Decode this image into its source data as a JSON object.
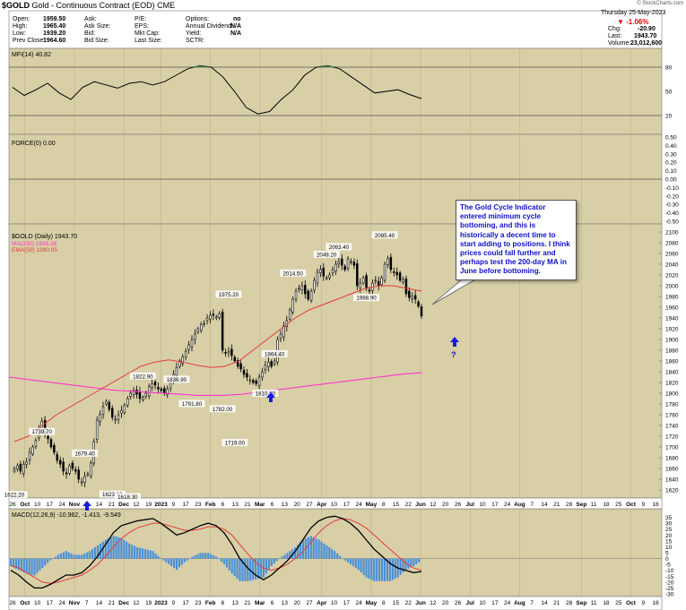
{
  "header": {
    "ticker": "$GOLD",
    "description": "Gold - Continuous Contract (EOD)",
    "exchange": "CME",
    "source": "© StockCharts.com",
    "date": "Thursday  25-May-2023",
    "change_pct": "-1.06%",
    "chg_label": "Chg:",
    "chg": "-20.90",
    "last_label": "Last:",
    "last": "1943.70",
    "volume_label": "Volume:",
    "volume": "23,012,600",
    "col1": [
      [
        "Open:",
        "1959.50"
      ],
      [
        "High:",
        "1965.40"
      ],
      [
        "Low:",
        "1939.20"
      ],
      [
        "Prev Close:",
        "1964.60"
      ]
    ],
    "col2": [
      "Ask:",
      "Ask Size:",
      "Bid:",
      "Bid Size:"
    ],
    "col3": [
      "P/E:",
      "EPS:",
      "Mkt Cap:",
      "Last Size:"
    ],
    "col4": [
      [
        "Options:",
        "no"
      ],
      [
        "Annual Dividend:",
        "N/A"
      ],
      [
        "Yield:",
        "N/A"
      ],
      [
        "SCTR:",
        ""
      ]
    ]
  },
  "annotation": {
    "text": "The Gold Cycle Indicator entered minimum cycle bottoming, and this is historically a decent time to start adding to positions. I think prices could fall further and perhaps test the 200-day MA in June before bottoming.",
    "question": "?"
  },
  "colors": {
    "background": "#d8cfa7",
    "annotation_text": "#1010c8",
    "arrow": "#1a1ae0",
    "ma200": "#ff33cc",
    "ema50": "#e23b3b",
    "macd_line": "#000000",
    "signal_line": "#e23b3b",
    "histogram": "#4a90d9",
    "mfi_fill": "#3f7a3f",
    "candle": "#000000"
  },
  "chart_data": [
    {
      "type": "line",
      "panel": "MFI",
      "label": "MFI(14) 40.82",
      "ylim": [
        0,
        100
      ],
      "y_ticks": [
        20,
        50,
        80
      ],
      "levels": [
        20,
        80
      ],
      "x": [
        "2022-09-26",
        "2022-10-03",
        "2022-10-10",
        "2022-10-17",
        "2022-10-24",
        "2022-10-31",
        "2022-11-07",
        "2022-11-14",
        "2022-11-21",
        "2022-11-28",
        "2022-12-05",
        "2022-12-12",
        "2022-12-19",
        "2022-12-26",
        "2023-01-02",
        "2023-01-09",
        "2023-01-16",
        "2023-01-23",
        "2023-01-30",
        "2023-02-06",
        "2023-02-13",
        "2023-02-20",
        "2023-02-27",
        "2023-03-06",
        "2023-03-13",
        "2023-03-20",
        "2023-03-27",
        "2023-04-03",
        "2023-04-10",
        "2023-04-17",
        "2023-04-24",
        "2023-05-01",
        "2023-05-08",
        "2023-05-15",
        "2023-05-22",
        "2023-05-25"
      ],
      "values": [
        55,
        45,
        52,
        60,
        48,
        40,
        55,
        62,
        58,
        54,
        60,
        62,
        58,
        62,
        70,
        78,
        82,
        80,
        68,
        50,
        30,
        22,
        25,
        40,
        52,
        70,
        80,
        82,
        78,
        68,
        58,
        48,
        50,
        52,
        46,
        41
      ]
    },
    {
      "type": "line",
      "panel": "FORCE",
      "label": "FORCE(0) 0.00",
      "ylim": [
        -0.5,
        0.5
      ],
      "y_ticks": [
        0.5,
        0.4,
        0.3,
        0.2,
        0.1,
        0.0,
        -0.1,
        -0.2,
        -0.3,
        -0.4,
        -0.5
      ],
      "values": [
        0
      ]
    },
    {
      "type": "candlestick",
      "panel": "price",
      "label": "$GOLD (Daily) 1943.70",
      "series": [
        {
          "name": "MA(200) 1836.26",
          "values_key": "ma200"
        },
        {
          "name": "EMA(50) 1990.05",
          "values_key": "ema50"
        }
      ],
      "ylim": [
        1610,
        2110
      ],
      "y_ticks": [
        1620,
        1640,
        1660,
        1680,
        1700,
        1720,
        1740,
        1760,
        1780,
        1800,
        1820,
        1840,
        1860,
        1880,
        1900,
        1920,
        1940,
        1960,
        1980,
        2000,
        2020,
        2040,
        2060,
        2080,
        2100
      ],
      "x_ticks": [
        "26",
        "Oct",
        "10",
        "17",
        "24",
        "Nov",
        "7",
        "14",
        "21",
        "Dec",
        "12",
        "19",
        "2023",
        "9",
        "17",
        "23",
        "Feb",
        "6",
        "13",
        "21",
        "Mar",
        "6",
        "13",
        "20",
        "27",
        "Apr",
        "10",
        "17",
        "24",
        "May",
        "8",
        "15",
        "22",
        "Jun",
        "12",
        "20",
        "26",
        "Jul",
        "10",
        "17",
        "24",
        "Aug",
        "7",
        "14",
        "21",
        "28",
        "Sep",
        "11",
        "18",
        "25",
        "Oct",
        "9",
        "16"
      ],
      "close": [
        1660,
        1665,
        1655,
        1668,
        1672,
        1690,
        1700,
        1712,
        1735,
        1748,
        1725,
        1715,
        1700,
        1690,
        1675,
        1668,
        1655,
        1650,
        1665,
        1660,
        1655,
        1640,
        1635,
        1645,
        1650,
        1670,
        1710,
        1750,
        1760,
        1775,
        1785,
        1770,
        1755,
        1752,
        1760,
        1768,
        1778,
        1790,
        1800,
        1805,
        1798,
        1790,
        1792,
        1800,
        1812,
        1818,
        1815,
        1808,
        1805,
        1800,
        1808,
        1820,
        1835,
        1848,
        1860,
        1868,
        1878,
        1890,
        1900,
        1910,
        1920,
        1928,
        1930,
        1940,
        1945,
        1945,
        1942,
        1948,
        1880,
        1875,
        1878,
        1870,
        1860,
        1850,
        1845,
        1835,
        1830,
        1825,
        1820,
        1818,
        1830,
        1840,
        1852,
        1858,
        1850,
        1860,
        1900,
        1910,
        1925,
        1935,
        1955,
        1975,
        1990,
        1995,
        2000,
        1985,
        1975,
        1990,
        2010,
        2025,
        2030,
        2018,
        2015,
        2020,
        2030,
        2040,
        2045,
        2038,
        2030,
        2050,
        2045,
        2038,
        2000,
        2005,
        2015,
        1995,
        1990,
        2005,
        2010,
        2000,
        2015,
        2040,
        2050,
        2030,
        2025,
        2020,
        2010,
        2012,
        1985,
        1978,
        1980,
        1975,
        1962,
        1943.7
      ],
      "ma200": [
        1830,
        1828,
        1826,
        1824,
        1822,
        1820,
        1818,
        1816,
        1814,
        1812,
        1810,
        1808,
        1806,
        1805,
        1804,
        1803,
        1802,
        1801,
        1800,
        1799,
        1798,
        1797,
        1796,
        1796,
        1796,
        1796,
        1797,
        1798,
        1800,
        1802,
        1804,
        1806,
        1808,
        1810,
        1812,
        1814,
        1816,
        1818,
        1820,
        1822,
        1824,
        1826,
        1828,
        1830,
        1832,
        1834,
        1836,
        1837,
        1838
      ],
      "ema50": [
        1710,
        1720,
        1740,
        1760,
        1775,
        1790,
        1805,
        1820,
        1835,
        1850,
        1858,
        1862,
        1858,
        1852,
        1848,
        1850,
        1860,
        1880,
        1900,
        1920,
        1940,
        1955,
        1965,
        1975,
        1985,
        1995,
        2000,
        2000,
        1995,
        1990
      ],
      "annotations": [
        "1622.20",
        "1739.70",
        "1679.40",
        "1623.10",
        "1618.30",
        "1791.80",
        "1719.00",
        "1822.90",
        "1836.90",
        "1782.00",
        "1975.20",
        "1864.40",
        "1810.80",
        "2014.50",
        "2049.20",
        "2063.40",
        "1988.90",
        "2085.40"
      ]
    },
    {
      "type": "line",
      "panel": "MACD",
      "label": "MACD(12,26,9) -10.962, -1.413, -9.549",
      "ylim": [
        -30,
        40
      ],
      "y_ticks": [
        35,
        30,
        25,
        20,
        15,
        10,
        5,
        0,
        -5,
        -10,
        -15,
        -20,
        -25,
        -30
      ],
      "x_ticks": [
        "26",
        "Oct",
        "10",
        "17",
        "24",
        "Nov",
        "7",
        "14",
        "21",
        "Dec",
        "12",
        "19",
        "2023",
        "9",
        "17",
        "23",
        "Feb",
        "6",
        "13",
        "21",
        "Mar",
        "6",
        "13",
        "20",
        "27",
        "Apr",
        "10",
        "17",
        "24",
        "May",
        "8",
        "15",
        "22",
        "Jun",
        "12",
        "20",
        "26",
        "Jul",
        "10",
        "17",
        "24",
        "Aug",
        "7",
        "14",
        "21",
        "28",
        "Sep",
        "11",
        "18",
        "25",
        "Oct",
        "9",
        "16"
      ],
      "series": [
        {
          "name": "MACD",
          "values": [
            -10,
            -14,
            -20,
            -25,
            -25,
            -22,
            -18,
            -14,
            -14,
            -12,
            -6,
            2,
            12,
            22,
            28,
            30,
            32,
            33,
            34,
            30,
            25,
            20,
            22,
            25,
            28,
            30,
            28,
            22,
            12,
            0,
            -8,
            -14,
            -18,
            -14,
            -8,
            -2,
            6,
            16,
            26,
            32,
            35,
            36,
            34,
            30,
            24,
            16,
            8,
            2,
            -4,
            -8,
            -10,
            -12,
            -11
          ]
        },
        {
          "name": "Signal",
          "values": [
            -6,
            -8,
            -12,
            -16,
            -20,
            -21,
            -20,
            -18,
            -16,
            -14,
            -10,
            -5,
            2,
            10,
            17,
            22,
            26,
            28,
            30,
            30,
            28,
            26,
            24,
            24,
            25,
            27,
            27,
            25,
            20,
            12,
            4,
            -3,
            -8,
            -10,
            -8,
            -5,
            0,
            6,
            14,
            22,
            28,
            32,
            34,
            33,
            30,
            26,
            20,
            14,
            8,
            2,
            -4,
            -8,
            -10
          ]
        }
      ]
    }
  ]
}
